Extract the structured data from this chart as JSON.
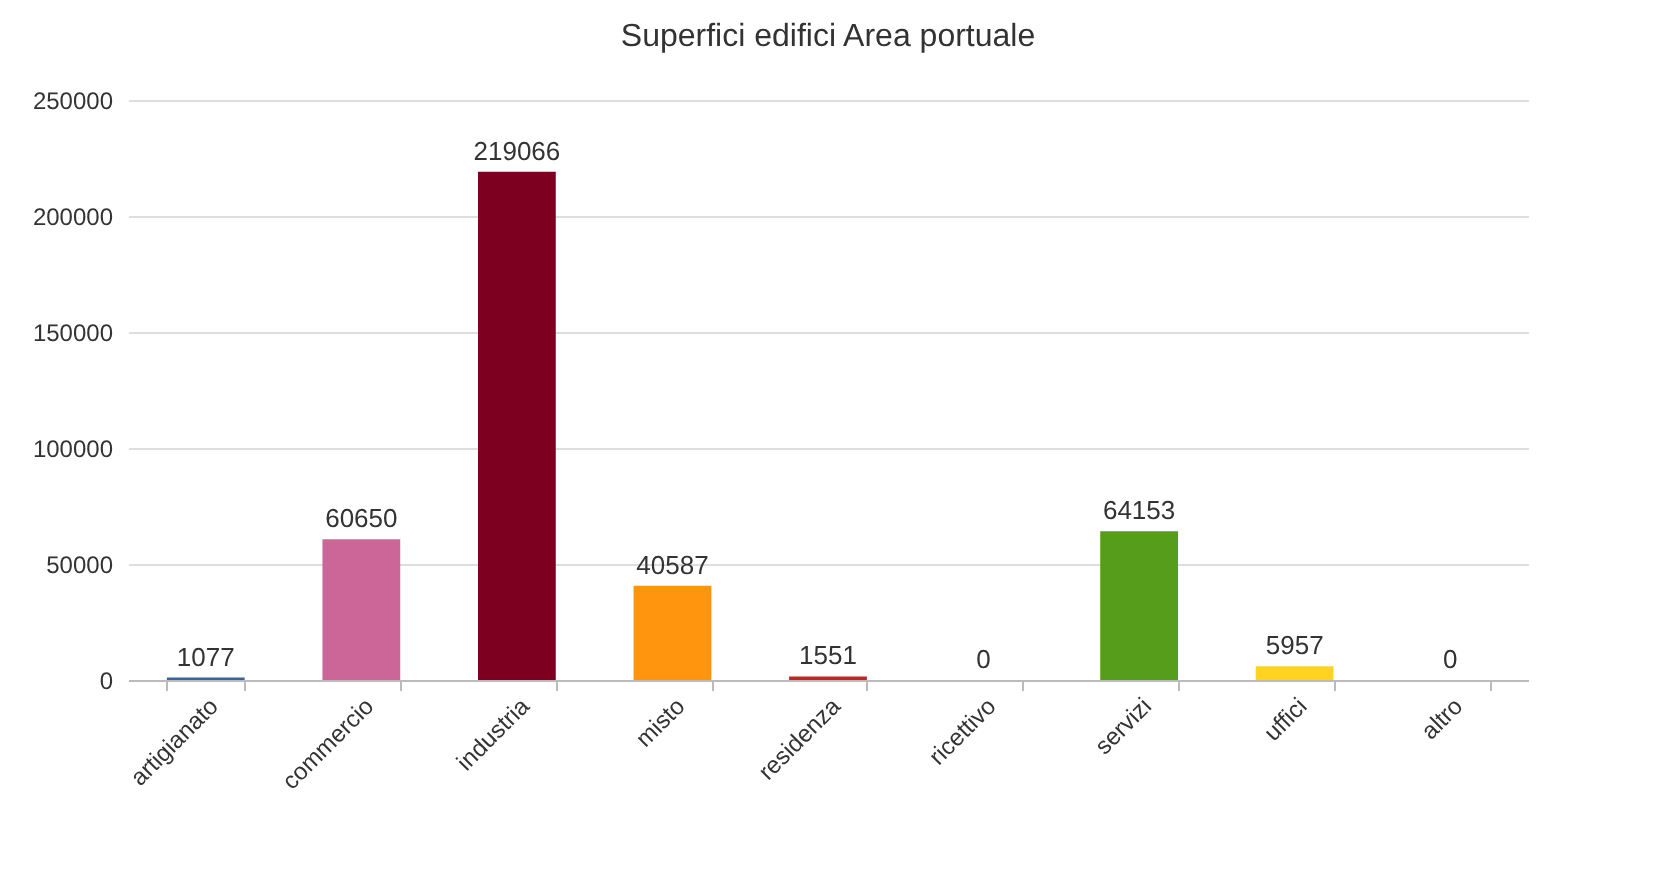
{
  "chart_data": {
    "type": "bar",
    "title": "Superfici edifici Area portuale",
    "categories": [
      "artigianato",
      "commercio",
      "industria",
      "misto",
      "residenza",
      "ricettivo",
      "servizi",
      "uffici",
      "altro"
    ],
    "values": [
      1077,
      60650,
      219066,
      40587,
      1551,
      0,
      64153,
      5957,
      0
    ],
    "colors": [
      "#3465a4",
      "#cc6699",
      "#7e0021",
      "#ff950e",
      "#c9211e",
      "#83caff",
      "#579d1c",
      "#ffd320",
      "#314004"
    ],
    "ylim": [
      0,
      250000
    ],
    "yticks": [
      0,
      50000,
      100000,
      150000,
      200000,
      250000
    ],
    "grid": "y",
    "data_labels": true
  }
}
